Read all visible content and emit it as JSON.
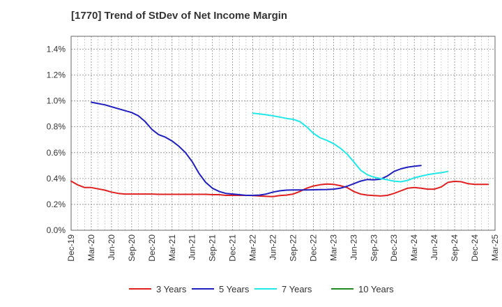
{
  "chart_data": {
    "type": "line",
    "title": "[1770]  Trend of StDev of Net Income Margin",
    "xlabel": "",
    "ylabel": "",
    "x_ticks": [
      "Dec-19",
      "Mar-20",
      "Jun-20",
      "Sep-20",
      "Dec-20",
      "Mar-21",
      "Jun-21",
      "Sep-21",
      "Dec-21",
      "Mar-22",
      "Jun-22",
      "Sep-22",
      "Dec-22",
      "Mar-23",
      "Jun-23",
      "Sep-23",
      "Dec-23",
      "Mar-24",
      "Jun-24",
      "Sep-24",
      "Dec-24",
      "Mar-25"
    ],
    "y_ticks": [
      "0.0%",
      "0.2%",
      "0.4%",
      "0.6%",
      "0.8%",
      "1.0%",
      "1.2%",
      "1.4%"
    ],
    "ylim": [
      0,
      1.5
    ],
    "grid": true,
    "legend_position": "bottom",
    "series": [
      {
        "name": "3 Years",
        "color": "#e02020",
        "start_index": 0,
        "values": [
          0.38,
          0.35,
          0.33,
          0.33,
          0.32,
          0.31,
          0.295,
          0.285,
          0.28,
          0.28,
          0.28,
          0.28,
          0.28,
          0.278,
          0.278,
          0.278,
          0.278,
          0.278,
          0.278,
          0.278,
          0.278,
          0.275,
          0.275,
          0.27,
          0.27,
          0.27,
          0.27,
          0.268,
          0.265,
          0.262,
          0.26,
          0.268,
          0.272,
          0.28,
          0.3,
          0.325,
          0.342,
          0.352,
          0.357,
          0.355,
          0.345,
          0.33,
          0.3,
          0.28,
          0.272,
          0.268,
          0.265,
          0.27,
          0.285,
          0.305,
          0.325,
          0.33,
          0.325,
          0.318,
          0.318,
          0.335,
          0.37,
          0.378,
          0.375,
          0.36,
          0.355,
          0.355,
          0.355
        ]
      },
      {
        "name": "5 Years",
        "color": "#1f1fc0",
        "start_index": 3,
        "values": [
          0.99,
          0.98,
          0.97,
          0.955,
          0.94,
          0.925,
          0.91,
          0.885,
          0.84,
          0.78,
          0.74,
          0.72,
          0.69,
          0.65,
          0.6,
          0.53,
          0.44,
          0.37,
          0.325,
          0.3,
          0.285,
          0.28,
          0.275,
          0.27,
          0.27,
          0.272,
          0.28,
          0.295,
          0.305,
          0.31,
          0.312,
          0.312,
          0.312,
          0.313,
          0.314,
          0.315,
          0.318,
          0.325,
          0.34,
          0.36,
          0.38,
          0.392,
          0.39,
          0.395,
          0.42,
          0.455,
          0.475,
          0.488,
          0.495,
          0.5
        ]
      },
      {
        "name": "7 Years",
        "color": "#20e8e8",
        "start_index": 27,
        "values": [
          0.905,
          0.9,
          0.893,
          0.885,
          0.875,
          0.865,
          0.858,
          0.84,
          0.8,
          0.75,
          0.715,
          0.695,
          0.67,
          0.635,
          0.59,
          0.53,
          0.465,
          0.43,
          0.41,
          0.4,
          0.39,
          0.38,
          0.375,
          0.385,
          0.405,
          0.418,
          0.43,
          0.438,
          0.445,
          0.455
        ]
      },
      {
        "name": "10 Years",
        "color": "#1f8a1f",
        "start_index": 0,
        "values": []
      }
    ]
  }
}
